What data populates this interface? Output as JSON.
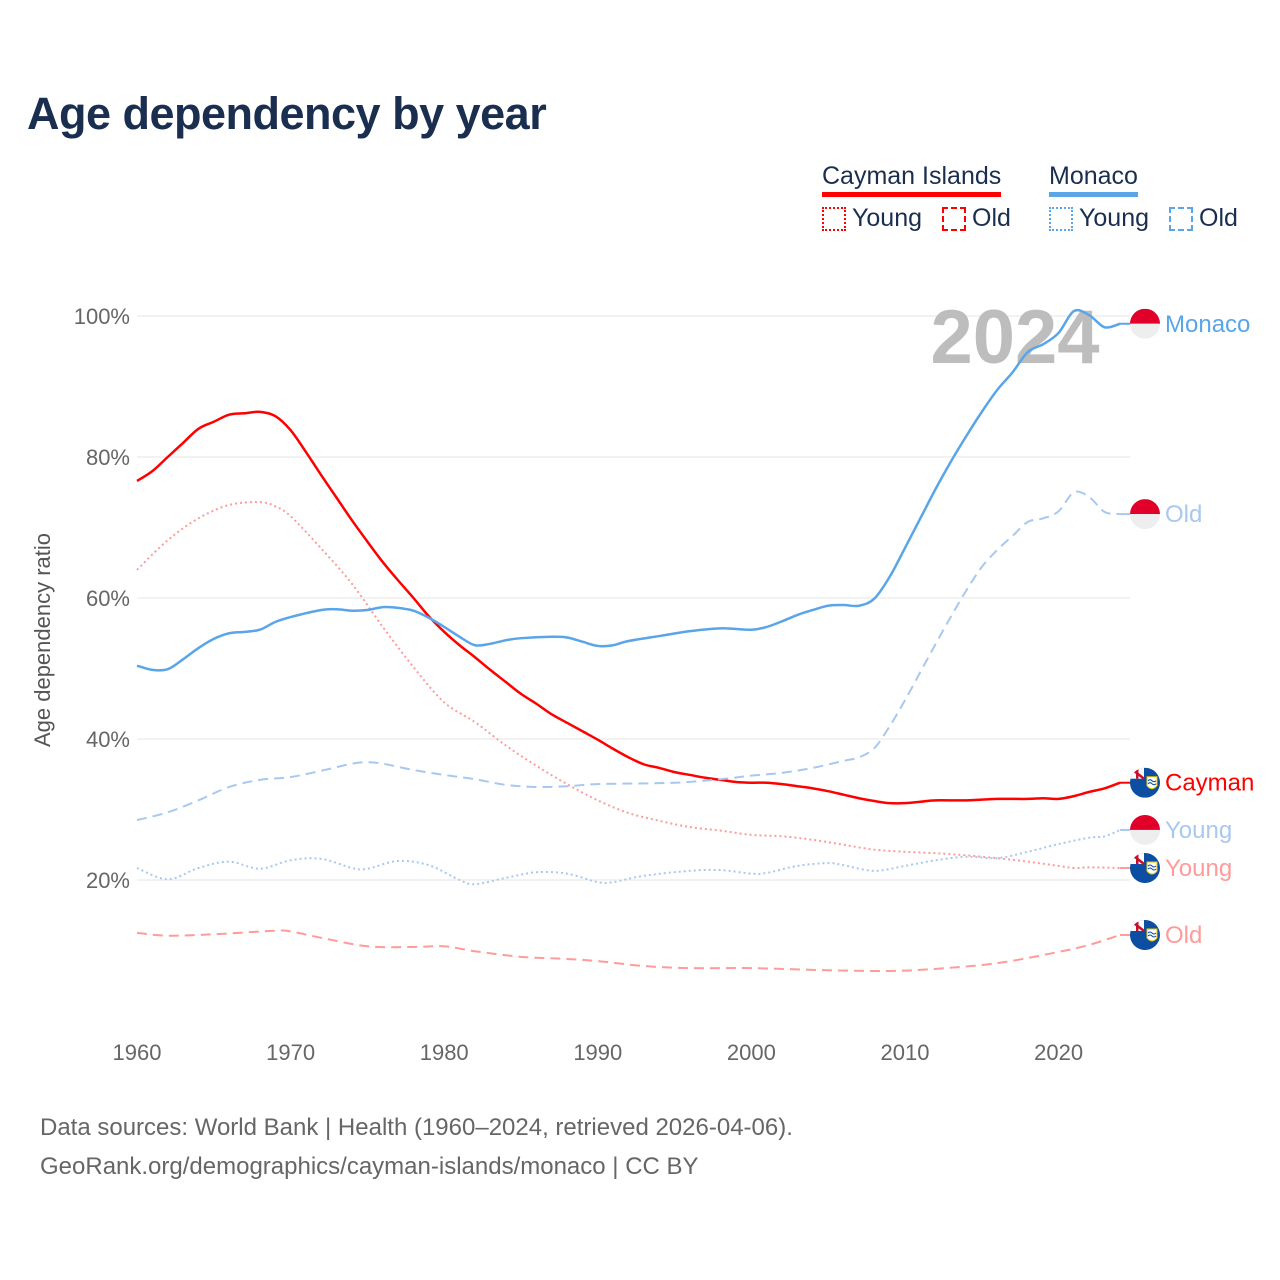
{
  "title": "Age dependency by year",
  "legend": {
    "countries": [
      {
        "name": "Cayman Islands",
        "color": "#ff0000",
        "young_label": "Young",
        "old_label": "Old"
      },
      {
        "name": "Monaco",
        "color": "#5aa5e8",
        "young_label": "Young",
        "old_label": "Old"
      }
    ]
  },
  "footer": {
    "line1": "Data sources: World Bank | Health (1960–2024, retrieved 2026-04-06).",
    "line2": "GeoRank.org/demographics/cayman-islands/monaco | CC BY"
  },
  "chart_data": {
    "type": "line",
    "title": "Age dependency by year",
    "xlabel": "",
    "ylabel": "Age dependency ratio",
    "xlim": [
      1960,
      2024
    ],
    "ylim": [
      0,
      100
    ],
    "x_ticks": [
      "1960",
      "1970",
      "1980",
      "1990",
      "2000",
      "2010",
      "2020"
    ],
    "y_ticks": [
      "20%",
      "40%",
      "60%",
      "80%",
      "100%"
    ],
    "grid": true,
    "year_watermark": "2024",
    "series": [
      {
        "name": "Cayman Islands",
        "end_label": "Cayman",
        "flag": "cayman",
        "style": "solid",
        "color": "#ff0000",
        "points": [
          [
            1960,
            76.6
          ],
          [
            1961,
            78
          ],
          [
            1962,
            80
          ],
          [
            1963,
            82
          ],
          [
            1964,
            84
          ],
          [
            1965,
            85
          ],
          [
            1966,
            86
          ],
          [
            1967,
            86.2
          ],
          [
            1968,
            86.4
          ],
          [
            1969,
            85.8
          ],
          [
            1970,
            83.8
          ],
          [
            1971,
            80.7
          ],
          [
            1972,
            77.4
          ],
          [
            1973,
            74.2
          ],
          [
            1974,
            71
          ],
          [
            1975,
            68
          ],
          [
            1976,
            65.1
          ],
          [
            1977,
            62.5
          ],
          [
            1978,
            60
          ],
          [
            1979,
            57.4
          ],
          [
            1980,
            55.2
          ],
          [
            1981,
            53.3
          ],
          [
            1982,
            51.6
          ],
          [
            1983,
            49.8
          ],
          [
            1984,
            48.1
          ],
          [
            1985,
            46.4
          ],
          [
            1986,
            45
          ],
          [
            1987,
            43.5
          ],
          [
            1988,
            42.3
          ],
          [
            1989,
            41.1
          ],
          [
            1990,
            39.9
          ],
          [
            1991,
            38.6
          ],
          [
            1992,
            37.4
          ],
          [
            1993,
            36.4
          ],
          [
            1994,
            35.9
          ],
          [
            1995,
            35.3
          ],
          [
            1996,
            34.9
          ],
          [
            1997,
            34.5
          ],
          [
            1998,
            34.2
          ],
          [
            1999,
            33.9
          ],
          [
            2000,
            33.8
          ],
          [
            2001,
            33.8
          ],
          [
            2002,
            33.6
          ],
          [
            2003,
            33.3
          ],
          [
            2004,
            33
          ],
          [
            2005,
            32.6
          ],
          [
            2006,
            32.1
          ],
          [
            2007,
            31.6
          ],
          [
            2008,
            31.2
          ],
          [
            2009,
            30.9
          ],
          [
            2010,
            30.9
          ],
          [
            2011,
            31.1
          ],
          [
            2012,
            31.3
          ],
          [
            2014,
            31.3
          ],
          [
            2016,
            31.5
          ],
          [
            2018,
            31.5
          ],
          [
            2019,
            31.6
          ],
          [
            2020,
            31.5
          ],
          [
            2021,
            31.9
          ],
          [
            2022,
            32.5
          ],
          [
            2023,
            33
          ],
          [
            2024,
            33.8
          ]
        ]
      },
      {
        "name": "Cayman Islands Young",
        "end_label": "Young",
        "flag": "cayman",
        "style": "dotted",
        "color": "#ff9b9b",
        "points": [
          [
            1960,
            64
          ],
          [
            1962,
            68.2
          ],
          [
            1964,
            71.3
          ],
          [
            1966,
            73.2
          ],
          [
            1968,
            73.6
          ],
          [
            1969,
            73
          ],
          [
            1970,
            71.6
          ],
          [
            1972,
            67
          ],
          [
            1974,
            62
          ],
          [
            1976,
            55.9
          ],
          [
            1978,
            50.2
          ],
          [
            1980,
            45.2
          ],
          [
            1982,
            42.4
          ],
          [
            1984,
            39.1
          ],
          [
            1986,
            36.2
          ],
          [
            1988,
            33.6
          ],
          [
            1990,
            31.3
          ],
          [
            1992,
            29.5
          ],
          [
            1994,
            28.4
          ],
          [
            1996,
            27.5
          ],
          [
            1998,
            27
          ],
          [
            2000,
            26.4
          ],
          [
            2002,
            26.2
          ],
          [
            2004,
            25.7
          ],
          [
            2006,
            25
          ],
          [
            2008,
            24.3
          ],
          [
            2010,
            24
          ],
          [
            2012,
            23.8
          ],
          [
            2014,
            23.5
          ],
          [
            2016,
            23.1
          ],
          [
            2018,
            22.6
          ],
          [
            2020,
            22
          ],
          [
            2021,
            21.7
          ],
          [
            2022,
            21.8
          ],
          [
            2024,
            21.7
          ]
        ]
      },
      {
        "name": "Cayman Islands Old",
        "end_label": "Old",
        "flag": "cayman",
        "style": "dashed",
        "color": "#ff9b9b",
        "points": [
          [
            1960,
            12.5
          ],
          [
            1962,
            12.1
          ],
          [
            1965,
            12.3
          ],
          [
            1969,
            12.8
          ],
          [
            1970,
            12.7
          ],
          [
            1972,
            11.8
          ],
          [
            1975,
            10.6
          ],
          [
            1978,
            10.5
          ],
          [
            1980,
            10.6
          ],
          [
            1982,
            9.9
          ],
          [
            1985,
            9.1
          ],
          [
            1988,
            8.8
          ],
          [
            1990,
            8.5
          ],
          [
            1993,
            7.8
          ],
          [
            1996,
            7.5
          ],
          [
            2000,
            7.5
          ],
          [
            2005,
            7.2
          ],
          [
            2009,
            7.1
          ],
          [
            2012,
            7.4
          ],
          [
            2016,
            8.2
          ],
          [
            2020,
            9.8
          ],
          [
            2022,
            10.8
          ],
          [
            2024,
            12.2
          ]
        ]
      },
      {
        "name": "Monaco",
        "end_label": "Monaco",
        "flag": "monaco",
        "style": "solid",
        "color": "#5aa5e8",
        "points": [
          [
            1960,
            50.4
          ],
          [
            1961,
            49.8
          ],
          [
            1962,
            49.9
          ],
          [
            1963,
            51.3
          ],
          [
            1964,
            52.9
          ],
          [
            1965,
            54.2
          ],
          [
            1966,
            55
          ],
          [
            1967,
            55.2
          ],
          [
            1968,
            55.5
          ],
          [
            1969,
            56.6
          ],
          [
            1970,
            57.3
          ],
          [
            1972,
            58.3
          ],
          [
            1973,
            58.4
          ],
          [
            1974,
            58.2
          ],
          [
            1975,
            58.3
          ],
          [
            1976,
            58.7
          ],
          [
            1977,
            58.6
          ],
          [
            1978,
            58.2
          ],
          [
            1979,
            57.2
          ],
          [
            1980,
            55.9
          ],
          [
            1981,
            54.5
          ],
          [
            1982,
            53.3
          ],
          [
            1983,
            53.5
          ],
          [
            1984,
            54
          ],
          [
            1985,
            54.3
          ],
          [
            1987,
            54.5
          ],
          [
            1988,
            54.4
          ],
          [
            1989,
            53.8
          ],
          [
            1990,
            53.2
          ],
          [
            1991,
            53.3
          ],
          [
            1992,
            53.9
          ],
          [
            1994,
            54.6
          ],
          [
            1996,
            55.3
          ],
          [
            1998,
            55.7
          ],
          [
            2000,
            55.5
          ],
          [
            2001,
            55.9
          ],
          [
            2002,
            56.7
          ],
          [
            2003,
            57.6
          ],
          [
            2004,
            58.3
          ],
          [
            2005,
            58.9
          ],
          [
            2006,
            59
          ],
          [
            2007,
            58.9
          ],
          [
            2008,
            59.9
          ],
          [
            2009,
            63
          ],
          [
            2010,
            67.1
          ],
          [
            2011,
            71.3
          ],
          [
            2012,
            75.5
          ],
          [
            2013,
            79.4
          ],
          [
            2014,
            83
          ],
          [
            2015,
            86.4
          ],
          [
            2016,
            89.5
          ],
          [
            2017,
            92
          ],
          [
            2018,
            94.9
          ],
          [
            2019,
            96
          ],
          [
            2020,
            97.6
          ],
          [
            2021,
            100.7
          ],
          [
            2022,
            100.1
          ],
          [
            2023,
            98.4
          ],
          [
            2024,
            98.9
          ]
        ]
      },
      {
        "name": "Monaco Old",
        "end_label": "Old",
        "flag": "monaco",
        "style": "dashed",
        "color": "#a8c8f0",
        "points": [
          [
            1960,
            28.5
          ],
          [
            1962,
            29.6
          ],
          [
            1964,
            31.3
          ],
          [
            1966,
            33.2
          ],
          [
            1968,
            34.2
          ],
          [
            1970,
            34.6
          ],
          [
            1972,
            35.5
          ],
          [
            1974,
            36.5
          ],
          [
            1975,
            36.7
          ],
          [
            1976,
            36.5
          ],
          [
            1978,
            35.6
          ],
          [
            1980,
            34.9
          ],
          [
            1982,
            34.3
          ],
          [
            1984,
            33.5
          ],
          [
            1986,
            33.2
          ],
          [
            1988,
            33.3
          ],
          [
            1990,
            33.6
          ],
          [
            1995,
            33.8
          ],
          [
            1998,
            34.3
          ],
          [
            2000,
            34.8
          ],
          [
            2002,
            35.2
          ],
          [
            2004,
            35.9
          ],
          [
            2006,
            36.9
          ],
          [
            2007,
            37.4
          ],
          [
            2008,
            38.7
          ],
          [
            2009,
            41.8
          ],
          [
            2010,
            45.5
          ],
          [
            2011,
            49.5
          ],
          [
            2012,
            53.5
          ],
          [
            2013,
            57.4
          ],
          [
            2014,
            61.1
          ],
          [
            2015,
            64.4
          ],
          [
            2016,
            66.8
          ],
          [
            2017,
            68.8
          ],
          [
            2018,
            70.8
          ],
          [
            2019,
            71.3
          ],
          [
            2020,
            72.3
          ],
          [
            2021,
            75
          ],
          [
            2022,
            74.3
          ],
          [
            2023,
            72.2
          ],
          [
            2024,
            71.9
          ]
        ]
      },
      {
        "name": "Monaco Young",
        "end_label": "Young",
        "flag": "monaco",
        "style": "dotted",
        "color": "#a8c8f0",
        "points": [
          [
            1960,
            21.7
          ],
          [
            1962,
            20.1
          ],
          [
            1964,
            21.7
          ],
          [
            1966,
            22.6
          ],
          [
            1968,
            21.6
          ],
          [
            1970,
            22.8
          ],
          [
            1972,
            23
          ],
          [
            1974,
            21.7
          ],
          [
            1975,
            21.6
          ],
          [
            1977,
            22.7
          ],
          [
            1979,
            22.1
          ],
          [
            1981,
            20
          ],
          [
            1982,
            19.4
          ],
          [
            1984,
            20.3
          ],
          [
            1986,
            21.1
          ],
          [
            1988,
            20.9
          ],
          [
            1990,
            19.7
          ],
          [
            1991,
            19.7
          ],
          [
            1993,
            20.6
          ],
          [
            1996,
            21.3
          ],
          [
            1998,
            21.4
          ],
          [
            2000,
            20.9
          ],
          [
            2001,
            21
          ],
          [
            2003,
            22
          ],
          [
            2005,
            22.4
          ],
          [
            2006,
            22.1
          ],
          [
            2008,
            21.3
          ],
          [
            2010,
            22
          ],
          [
            2012,
            22.8
          ],
          [
            2014,
            23.3
          ],
          [
            2016,
            23.1
          ],
          [
            2018,
            24
          ],
          [
            2020,
            25.1
          ],
          [
            2022,
            26
          ],
          [
            2023,
            26.2
          ],
          [
            2024,
            27.1
          ]
        ]
      }
    ]
  }
}
